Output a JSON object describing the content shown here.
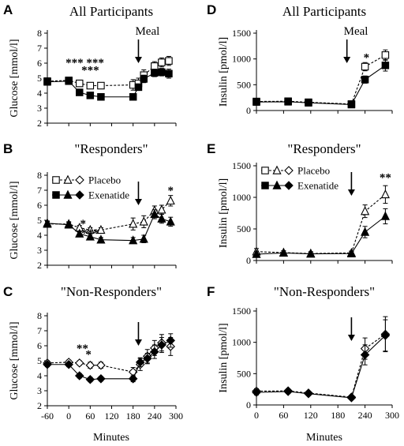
{
  "xlabel_bottom": "Minutes",
  "chart_data": [
    {
      "id": "A",
      "letter": "A",
      "type": "line",
      "title": "All Participants",
      "xlabel": "",
      "ylabel": "Glucose [mmol/l]",
      "xlim": [
        -60,
        300
      ],
      "ylim": [
        2,
        8
      ],
      "xticks": [
        -60,
        0,
        60,
        120,
        180,
        240,
        300
      ],
      "show_xtick_labels": false,
      "yticks": [
        2,
        3,
        4,
        5,
        6,
        7,
        8
      ],
      "series": [
        {
          "marker": "square",
          "filled": false,
          "dash": true,
          "x": [
            -60,
            0,
            30,
            60,
            90,
            180,
            195,
            210,
            240,
            260,
            280
          ],
          "y": [
            4.8,
            4.85,
            4.65,
            4.5,
            4.5,
            4.55,
            4.65,
            5.2,
            5.8,
            6.05,
            6.15
          ],
          "err": [
            0.1,
            0.1,
            0.1,
            0.1,
            0.1,
            0.35,
            0.35,
            0.35,
            0.3,
            0.3,
            0.3
          ]
        },
        {
          "marker": "square",
          "filled": true,
          "dash": false,
          "x": [
            -60,
            0,
            30,
            60,
            90,
            180,
            195,
            210,
            240,
            260,
            280
          ],
          "y": [
            4.75,
            4.8,
            4.05,
            3.85,
            3.75,
            3.75,
            4.4,
            4.95,
            5.35,
            5.4,
            5.3
          ],
          "err": [
            0.1,
            0.1,
            0.1,
            0.1,
            0.1,
            0.15,
            0.2,
            0.25,
            0.25,
            0.25,
            0.3
          ]
        }
      ],
      "meal_arrow": {
        "x": 195,
        "label": "Meal"
      },
      "significance": [
        {
          "text": "*** ***",
          "x": 45,
          "y": 6.1
        },
        {
          "text": "***",
          "x": 60,
          "y": 5.6
        }
      ]
    },
    {
      "id": "B",
      "letter": "B",
      "type": "line",
      "title": "\"Responders\"",
      "xlabel": "",
      "ylabel": "Glucose [mmol/l]",
      "xlim": [
        -60,
        300
      ],
      "ylim": [
        2,
        8
      ],
      "xticks": [
        -60,
        0,
        60,
        120,
        180,
        240,
        300
      ],
      "show_xtick_labels": false,
      "yticks": [
        2,
        3,
        4,
        5,
        6,
        7,
        8
      ],
      "series": [
        {
          "marker": "triangle",
          "filled": false,
          "dash": true,
          "x": [
            -60,
            0,
            30,
            60,
            90,
            180,
            210,
            240,
            260,
            285
          ],
          "y": [
            4.75,
            4.75,
            4.5,
            4.35,
            4.35,
            4.75,
            4.9,
            5.65,
            5.7,
            6.3
          ],
          "err": [
            0.15,
            0.15,
            0.15,
            0.15,
            0.15,
            0.4,
            0.4,
            0.3,
            0.3,
            0.35
          ]
        },
        {
          "marker": "triangle",
          "filled": true,
          "dash": false,
          "x": [
            -60,
            0,
            30,
            60,
            90,
            180,
            210,
            240,
            260,
            285
          ],
          "y": [
            4.8,
            4.7,
            4.1,
            3.9,
            3.7,
            3.65,
            3.75,
            5.4,
            5.1,
            4.9
          ],
          "err": [
            0.15,
            0.15,
            0.15,
            0.15,
            0.15,
            0.2,
            0.25,
            0.3,
            0.3,
            0.3
          ]
        }
      ],
      "meal_arrow": {
        "x": 195,
        "label": ""
      },
      "significance": [
        {
          "text": "*",
          "x": 40,
          "y": 4.85
        },
        {
          "text": "***",
          "x": 60,
          "y": 4.2
        },
        {
          "text": "*",
          "x": 285,
          "y": 7.05
        }
      ],
      "legend": {
        "placement": "top-left",
        "entries": [
          {
            "label": "Placebo",
            "filled": false,
            "dash": true
          },
          {
            "label": "Exenatide",
            "filled": true,
            "dash": false
          }
        ]
      }
    },
    {
      "id": "C",
      "letter": "C",
      "type": "line",
      "title": "\"Non-Responders\"",
      "xlabel": "",
      "ylabel": "Glucose [mmol/l]",
      "xlim": [
        -60,
        300
      ],
      "ylim": [
        2,
        8
      ],
      "xticks": [
        -60,
        0,
        60,
        120,
        180,
        240,
        300
      ],
      "show_xtick_labels": true,
      "yticks": [
        2,
        3,
        4,
        5,
        6,
        7,
        8
      ],
      "series": [
        {
          "marker": "diamond",
          "filled": false,
          "dash": true,
          "x": [
            -60,
            0,
            30,
            60,
            90,
            180,
            200,
            220,
            240,
            260,
            285
          ],
          "y": [
            4.85,
            4.9,
            4.85,
            4.7,
            4.7,
            4.25,
            4.75,
            5.3,
            5.85,
            6.2,
            5.95
          ],
          "err": [
            0.15,
            0.15,
            0.15,
            0.2,
            0.2,
            0.3,
            0.4,
            0.45,
            0.5,
            0.55,
            0.6
          ]
        },
        {
          "marker": "diamond",
          "filled": true,
          "dash": false,
          "x": [
            -60,
            0,
            30,
            60,
            90,
            180,
            200,
            220,
            240,
            260,
            285
          ],
          "y": [
            4.75,
            4.75,
            4.0,
            3.75,
            3.8,
            3.8,
            4.9,
            5.15,
            5.6,
            6.05,
            6.35
          ],
          "err": [
            0.15,
            0.15,
            0.15,
            0.15,
            0.15,
            0.2,
            0.3,
            0.35,
            0.45,
            0.5,
            0.45
          ]
        }
      ],
      "meal_arrow": {
        "x": 195,
        "label": ""
      },
      "significance": [
        {
          "text": "**",
          "x": 38,
          "y": 5.9
        },
        {
          "text": "*",
          "x": 55,
          "y": 5.5
        }
      ]
    },
    {
      "id": "D",
      "letter": "D",
      "type": "line",
      "title": "All Participants",
      "xlabel": "",
      "ylabel": "Insulin [pmol/l]",
      "xlim": [
        0,
        300
      ],
      "ylim": [
        0,
        1500
      ],
      "xticks": [
        0,
        60,
        120,
        180,
        240,
        300
      ],
      "show_xtick_labels": false,
      "yticks": [
        0,
        500,
        1000,
        1500
      ],
      "series": [
        {
          "marker": "square",
          "filled": false,
          "dash": true,
          "x": [
            0,
            70,
            115,
            210,
            240,
            285
          ],
          "y": [
            175,
            180,
            160,
            125,
            850,
            1075
          ],
          "err": [
            40,
            30,
            30,
            30,
            80,
            100
          ]
        },
        {
          "marker": "square",
          "filled": true,
          "dash": false,
          "x": [
            0,
            70,
            115,
            210,
            240,
            285
          ],
          "y": [
            165,
            170,
            150,
            115,
            600,
            875
          ],
          "err": [
            40,
            30,
            30,
            30,
            70,
            110
          ]
        }
      ],
      "meal_arrow": {
        "x": 200,
        "label": "Meal"
      },
      "significance": [
        {
          "text": "*",
          "x": 243,
          "y": 1050
        }
      ]
    },
    {
      "id": "E",
      "letter": "E",
      "type": "line",
      "title": "\"Responders\"",
      "xlabel": "",
      "ylabel": "Insulin [pmol/l]",
      "xlim": [
        0,
        300
      ],
      "ylim": [
        0,
        1500
      ],
      "xticks": [
        0,
        60,
        120,
        180,
        240,
        300
      ],
      "show_xtick_labels": false,
      "yticks": [
        0,
        500,
        1000,
        1500
      ],
      "series": [
        {
          "marker": "triangle",
          "filled": false,
          "dash": true,
          "x": [
            0,
            60,
            120,
            210,
            240,
            285
          ],
          "y": [
            140,
            125,
            110,
            120,
            780,
            1045
          ],
          "err": [
            50,
            30,
            30,
            30,
            100,
            140
          ]
        },
        {
          "marker": "triangle",
          "filled": true,
          "dash": false,
          "x": [
            0,
            60,
            120,
            210,
            240,
            285
          ],
          "y": [
            100,
            120,
            105,
            110,
            450,
            700
          ],
          "err": [
            40,
            30,
            30,
            30,
            90,
            120
          ]
        }
      ],
      "meal_arrow": {
        "x": 210,
        "label": ""
      },
      "significance": [
        {
          "text": "**",
          "x": 285,
          "y": 1330
        }
      ],
      "legend": {
        "placement": "top-left",
        "entries": [
          {
            "label": "Placebo",
            "filled": false,
            "dash": true
          },
          {
            "label": "Exenatide",
            "filled": true,
            "dash": false
          }
        ]
      }
    },
    {
      "id": "F",
      "letter": "F",
      "type": "line",
      "title": "\"Non-Responders\"",
      "xlabel": "",
      "ylabel": "Insulin [pmol/l]",
      "xlim": [
        0,
        300
      ],
      "ylim": [
        0,
        1500
      ],
      "xticks": [
        0,
        60,
        120,
        180,
        240,
        300
      ],
      "show_xtick_labels": true,
      "yticks": [
        0,
        500,
        1000,
        1500
      ],
      "series": [
        {
          "marker": "diamond",
          "filled": false,
          "dash": true,
          "x": [
            0,
            70,
            115,
            210,
            240,
            285
          ],
          "y": [
            220,
            225,
            190,
            125,
            900,
            1130
          ],
          "err": [
            40,
            30,
            30,
            30,
            170,
            280
          ]
        },
        {
          "marker": "diamond",
          "filled": true,
          "dash": false,
          "x": [
            0,
            70,
            115,
            210,
            240,
            285
          ],
          "y": [
            200,
            215,
            180,
            115,
            800,
            1110
          ],
          "err": [
            40,
            30,
            30,
            30,
            160,
            250
          ]
        }
      ],
      "meal_arrow": {
        "x": 210,
        "label": ""
      },
      "significance": []
    }
  ]
}
